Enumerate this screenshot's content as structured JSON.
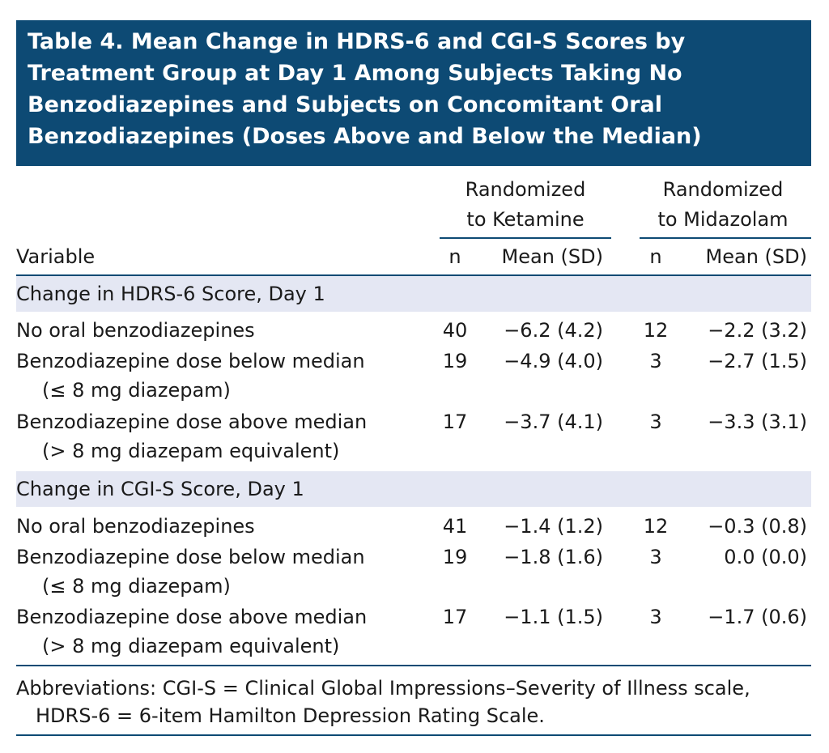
{
  "title": [
    "Table 4. Mean Change in HDRS-6 and CGI-S Scores by",
    "Treatment Group at Day 1 Among Subjects Taking No",
    "Benzodiazepines and Subjects on Concomitant Oral",
    "Benzodiazepines (Doses Above and Below the Median)"
  ],
  "header": {
    "groups": [
      [
        "Randomized",
        "to Ketamine"
      ],
      [
        "Randomized",
        "to Midazolam"
      ]
    ],
    "columns": [
      "Variable",
      "n",
      "Mean (SD)",
      "n",
      "Mean (SD)"
    ]
  },
  "sections": [
    {
      "title": "Change in HDRS-6 Score, Day 1",
      "rows": [
        {
          "label": [
            "No oral benzodiazepines"
          ],
          "cells": [
            40,
            "−6.2 (4.2)",
            12,
            "−2.2 (3.2)"
          ]
        },
        {
          "label": [
            "Benzodiazepine dose below median",
            "(≤ 8 mg diazepam)"
          ],
          "cells": [
            19,
            "−4.9 (4.0)",
            3,
            "−2.7 (1.5)"
          ]
        },
        {
          "label": [
            "Benzodiazepine dose above median",
            "(> 8 mg diazepam equivalent)"
          ],
          "cells": [
            17,
            "−3.7 (4.1)",
            3,
            "−3.3 (3.1)"
          ]
        }
      ]
    },
    {
      "title": "Change in CGI-S Score, Day 1",
      "rows": [
        {
          "label": [
            "No oral benzodiazepines"
          ],
          "cells": [
            41,
            "−1.4 (1.2)",
            12,
            "−0.3 (0.8)"
          ]
        },
        {
          "label": [
            "Benzodiazepine dose below median",
            "(≤ 8 mg diazepam)"
          ],
          "cells": [
            19,
            "−1.8 (1.6)",
            3,
            "0.0 (0.0)"
          ]
        },
        {
          "label": [
            "Benzodiazepine dose above median",
            "(> 8 mg diazepam equivalent)"
          ],
          "cells": [
            17,
            "−1.1 (1.5)",
            3,
            "−1.7 (0.6)"
          ]
        }
      ]
    }
  ],
  "footnote": [
    "Abbreviations: CGI-S = Clinical Global Impressions–Severity of Illness scale,",
    "HDRS-6 = 6-item Hamilton Depression Rating Scale."
  ]
}
